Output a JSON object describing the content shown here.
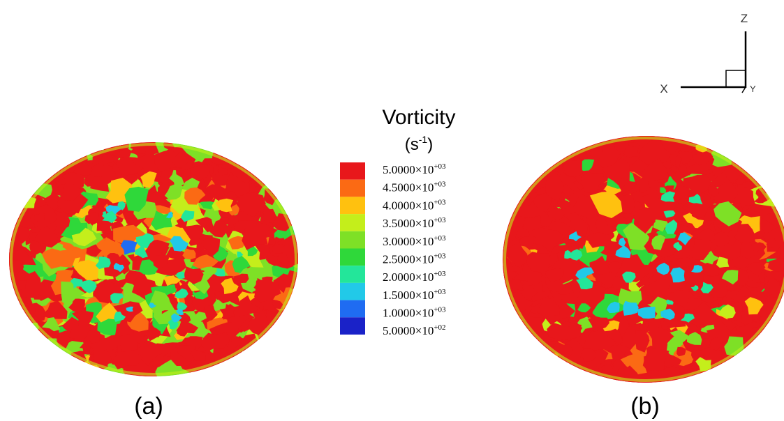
{
  "axes": {
    "z": "Z",
    "x": "X",
    "y": "Y"
  },
  "legend": {
    "title": "Vorticity",
    "unit_open": "(s",
    "unit_exponent": "-1",
    "unit_close": ")",
    "entries": [
      {
        "base": "5.0000×10",
        "exponent": "+03",
        "color": "#e8171b"
      },
      {
        "base": "4.5000×10",
        "exponent": "+03",
        "color": "#fb6a14"
      },
      {
        "base": "4.0000×10",
        "exponent": "+03",
        "color": "#ffc10f"
      },
      {
        "base": "3.5000×10",
        "exponent": "+03",
        "color": "#c4ee1b"
      },
      {
        "base": "3.0000×10",
        "exponent": "+03",
        "color": "#7ee026"
      },
      {
        "base": "2.5000×10",
        "exponent": "+03",
        "color": "#2fd83a"
      },
      {
        "base": "2.0000×10",
        "exponent": "+03",
        "color": "#23e69a"
      },
      {
        "base": "1.5000×10",
        "exponent": "+03",
        "color": "#22c9e8"
      },
      {
        "base": "1.0000×10",
        "exponent": "+03",
        "color": "#1f6cf2"
      },
      {
        "base": "5.0000×10",
        "exponent": "+02",
        "color": "#1a22c8"
      }
    ]
  },
  "panels": [
    {
      "label": "(a)"
    },
    {
      "label": "(b)"
    }
  ]
}
